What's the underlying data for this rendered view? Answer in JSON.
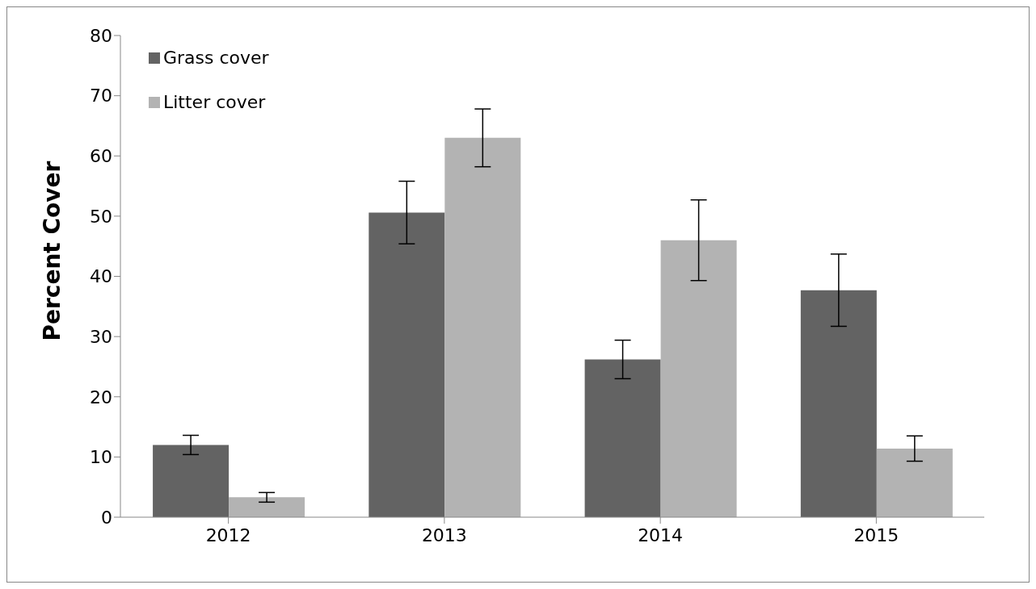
{
  "chart_data": {
    "type": "bar",
    "ylabel": "Percent Cover",
    "categories": [
      "2012",
      "2013",
      "2014",
      "2015"
    ],
    "series": [
      {
        "name": "Grass cover",
        "color": "#636363",
        "values": [
          12,
          50.6,
          26.2,
          37.7
        ],
        "errors": [
          1.6,
          5.2,
          3.2,
          6
        ]
      },
      {
        "name": "Litter cover",
        "color": "#b3b3b3",
        "values": [
          3.3,
          63,
          46,
          11.4
        ],
        "errors": [
          0.8,
          4.8,
          6.7,
          2.1
        ]
      }
    ],
    "ylim": [
      0,
      80
    ],
    "yticks": [
      0,
      10,
      20,
      30,
      40,
      50,
      60,
      70,
      80
    ],
    "grid": false,
    "legend": "top left"
  }
}
